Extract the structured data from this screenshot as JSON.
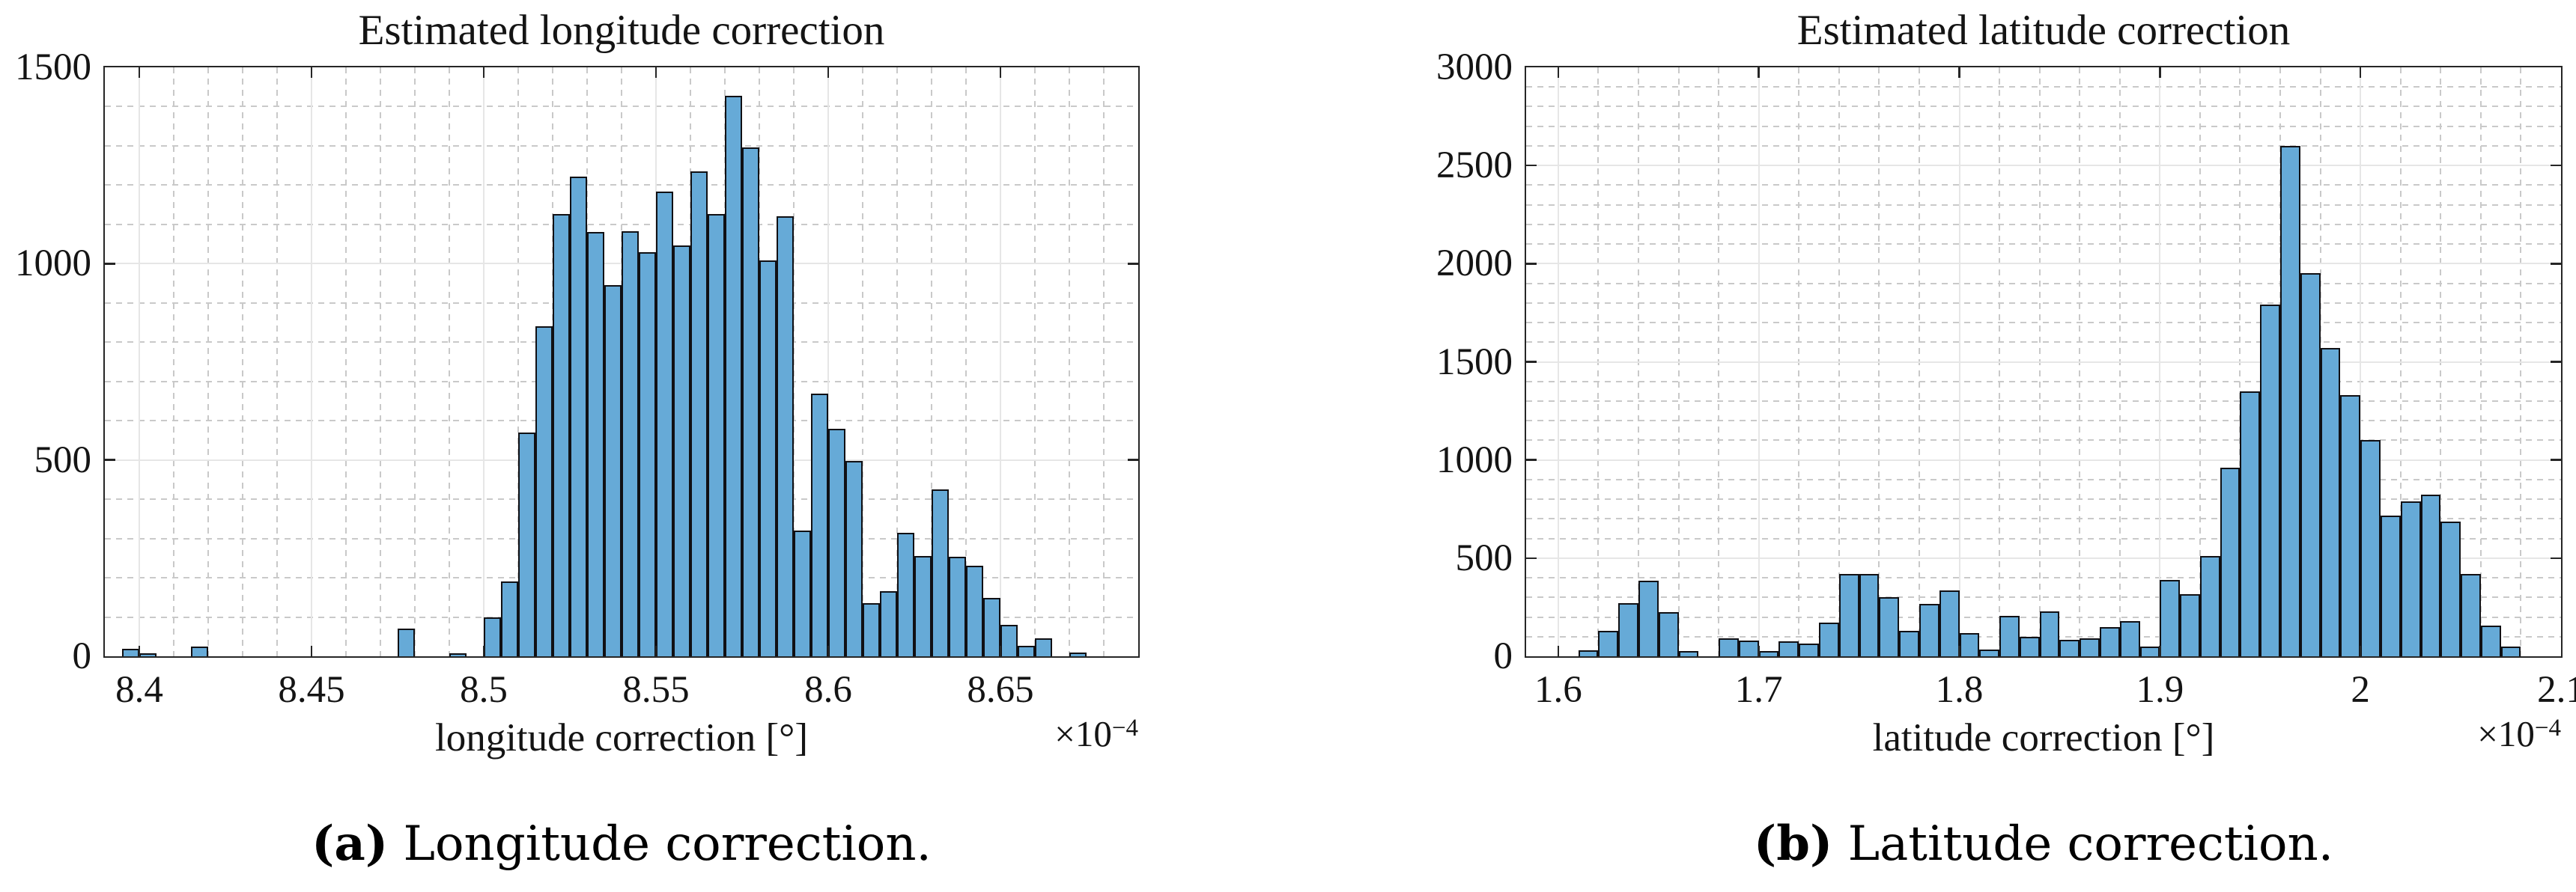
{
  "figure": {
    "background": "#ffffff",
    "bar_fill": "#66aad7",
    "bar_edge": "#101014",
    "grid_major_color": "#e6e6e6",
    "grid_minor_color": "#c9c9c9",
    "axis_color": "#262626",
    "text_color": "#141414"
  },
  "chart_data": [
    {
      "type": "bar",
      "title": "Estimated longitude correction",
      "xlabel": "longitude correction [°]",
      "ylabel": "",
      "offset_base": "×10",
      "offset_exp": "−4",
      "caption_tag": "(a)",
      "caption_text": " Longitude correction.",
      "xlim": [
        8.39,
        8.69
      ],
      "ylim": [
        0,
        1500
      ],
      "xticks": [
        8.4,
        8.45,
        8.5,
        8.55,
        8.6,
        8.65
      ],
      "xtick_labels": [
        "8.4",
        "8.45",
        "8.5",
        "8.55",
        "8.6",
        "8.65"
      ],
      "yticks": [
        0,
        500,
        1000,
        1500
      ],
      "ytick_labels": [
        "0",
        "500",
        "1000",
        "1500"
      ],
      "x_minor_step": 0.01,
      "y_minor_step": 100,
      "grid": "on",
      "legend_position": "none",
      "bin_width": 0.005,
      "bars": [
        [
          8.395,
          20
        ],
        [
          8.4,
          8
        ],
        [
          8.415,
          25
        ],
        [
          8.475,
          70
        ],
        [
          8.49,
          8
        ],
        [
          8.5,
          100
        ],
        [
          8.505,
          190
        ],
        [
          8.51,
          570
        ],
        [
          8.515,
          840
        ],
        [
          8.52,
          1126
        ],
        [
          8.525,
          1221
        ],
        [
          8.53,
          1080
        ],
        [
          8.535,
          946
        ],
        [
          8.54,
          1082
        ],
        [
          8.545,
          1029
        ],
        [
          8.55,
          1184
        ],
        [
          8.555,
          1046
        ],
        [
          8.56,
          1235
        ],
        [
          8.565,
          1127
        ],
        [
          8.57,
          1427
        ],
        [
          8.575,
          1296
        ],
        [
          8.58,
          1008
        ],
        [
          8.585,
          1120
        ],
        [
          8.59,
          320
        ],
        [
          8.595,
          669
        ],
        [
          8.6,
          579
        ],
        [
          8.605,
          497
        ],
        [
          8.61,
          135
        ],
        [
          8.615,
          165
        ],
        [
          8.62,
          315
        ],
        [
          8.625,
          255
        ],
        [
          8.63,
          425
        ],
        [
          8.635,
          253
        ],
        [
          8.64,
          230
        ],
        [
          8.645,
          148
        ],
        [
          8.65,
          80
        ],
        [
          8.655,
          26
        ],
        [
          8.66,
          45
        ],
        [
          8.67,
          9
        ]
      ]
    },
    {
      "type": "bar",
      "title": "Estimated latitude correction",
      "xlabel": "latitude correction [°]",
      "ylabel": "",
      "offset_base": "×10",
      "offset_exp": "−4",
      "caption_tag": "(b)",
      "caption_text": " Latitude correction.",
      "xlim": [
        1.584,
        2.1
      ],
      "ylim": [
        0,
        3000
      ],
      "xticks": [
        1.6,
        1.7,
        1.8,
        1.9,
        2.0,
        2.1
      ],
      "xtick_labels": [
        "1.6",
        "1.7",
        "1.8",
        "1.9",
        "2",
        "2.1"
      ],
      "yticks": [
        0,
        500,
        1000,
        1500,
        2000,
        2500,
        3000
      ],
      "ytick_labels": [
        "0",
        "500",
        "1000",
        "1500",
        "2000",
        "2500",
        "3000"
      ],
      "x_minor_step": 0.02,
      "y_minor_step": 100,
      "grid": "on",
      "legend_position": "none",
      "bin_width": 0.01,
      "bars": [
        [
          1.61,
          30
        ],
        [
          1.62,
          130
        ],
        [
          1.63,
          270
        ],
        [
          1.64,
          385
        ],
        [
          1.65,
          225
        ],
        [
          1.66,
          25
        ],
        [
          1.68,
          90
        ],
        [
          1.69,
          80
        ],
        [
          1.7,
          25
        ],
        [
          1.71,
          75
        ],
        [
          1.72,
          65
        ],
        [
          1.73,
          170
        ],
        [
          1.74,
          420
        ],
        [
          1.75,
          420
        ],
        [
          1.76,
          300
        ],
        [
          1.77,
          130
        ],
        [
          1.78,
          265
        ],
        [
          1.79,
          335
        ],
        [
          1.8,
          120
        ],
        [
          1.81,
          35
        ],
        [
          1.82,
          205
        ],
        [
          1.83,
          100
        ],
        [
          1.84,
          230
        ],
        [
          1.85,
          85
        ],
        [
          1.86,
          92
        ],
        [
          1.87,
          150
        ],
        [
          1.88,
          180
        ],
        [
          1.89,
          50
        ],
        [
          1.9,
          390
        ],
        [
          1.91,
          315
        ],
        [
          1.92,
          510
        ],
        [
          1.93,
          960
        ],
        [
          1.94,
          1350
        ],
        [
          1.95,
          1790
        ],
        [
          1.96,
          2600
        ],
        [
          1.97,
          1950
        ],
        [
          1.98,
          1570
        ],
        [
          1.99,
          1330
        ],
        [
          2.0,
          1100
        ],
        [
          2.01,
          715
        ],
        [
          2.02,
          790
        ],
        [
          2.03,
          825
        ],
        [
          2.04,
          685
        ],
        [
          2.05,
          420
        ],
        [
          2.06,
          157
        ],
        [
          2.07,
          49
        ]
      ]
    }
  ]
}
